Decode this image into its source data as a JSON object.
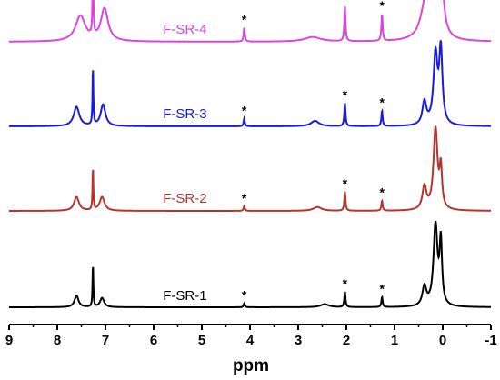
{
  "chart_data": {
    "type": "line",
    "title": "",
    "xlabel": "ppm",
    "ylabel": "",
    "xlim": [
      9,
      -1
    ],
    "x_reversed": true,
    "x_ticks": [
      9,
      8,
      7,
      6,
      5,
      4,
      3,
      2,
      1,
      0,
      -1
    ],
    "x_tick_labels": [
      "9",
      "8",
      "7",
      "6",
      "5",
      "4",
      "3",
      "2",
      "1",
      "0",
      "-1"
    ],
    "grid": false,
    "legend": "none",
    "annotation_symbol": "*",
    "annotation_ppm": [
      4.12,
      2.03,
      1.26
    ],
    "series": [
      {
        "name": "F-SR-4",
        "color": "#d946d9",
        "label_ppm": 5.35,
        "peaks": [
          {
            "ppm": 7.52,
            "h": 0.33,
            "w": 0.12
          },
          {
            "ppm": 7.26,
            "h": 1.0,
            "w": 0.01
          },
          {
            "ppm": 7.02,
            "h": 0.42,
            "w": 0.09
          },
          {
            "ppm": 4.12,
            "h": 0.18,
            "w": 0.015
          },
          {
            "ppm": 2.03,
            "h": 0.45,
            "w": 0.015
          },
          {
            "ppm": 1.26,
            "h": 0.35,
            "w": 0.015
          },
          {
            "ppm": 2.7,
            "h": 0.06,
            "w": 0.2
          },
          {
            "ppm": 0.35,
            "h": 0.5,
            "w": 0.12
          },
          {
            "ppm": 0.15,
            "h": 0.6,
            "w": 0.09
          },
          {
            "ppm": 0.02,
            "h": 0.55,
            "w": 0.06
          }
        ]
      },
      {
        "name": "F-SR-3",
        "color": "#1a1adb",
        "label_ppm": 5.35,
        "peaks": [
          {
            "ppm": 7.6,
            "h": 0.25,
            "w": 0.07
          },
          {
            "ppm": 7.26,
            "h": 0.75,
            "w": 0.01
          },
          {
            "ppm": 7.05,
            "h": 0.28,
            "w": 0.06
          },
          {
            "ppm": 4.12,
            "h": 0.1,
            "w": 0.015
          },
          {
            "ppm": 2.65,
            "h": 0.07,
            "w": 0.1
          },
          {
            "ppm": 2.03,
            "h": 0.3,
            "w": 0.015
          },
          {
            "ppm": 1.26,
            "h": 0.2,
            "w": 0.015
          },
          {
            "ppm": 0.38,
            "h": 0.3,
            "w": 0.05
          },
          {
            "ppm": 0.15,
            "h": 0.9,
            "w": 0.05
          },
          {
            "ppm": 0.04,
            "h": 0.95,
            "w": 0.04
          }
        ]
      },
      {
        "name": "F-SR-2",
        "color": "#b5342b",
        "label_ppm": 5.35,
        "peaks": [
          {
            "ppm": 7.6,
            "h": 0.18,
            "w": 0.06
          },
          {
            "ppm": 7.26,
            "h": 0.55,
            "w": 0.01
          },
          {
            "ppm": 7.07,
            "h": 0.18,
            "w": 0.06
          },
          {
            "ppm": 4.12,
            "h": 0.06,
            "w": 0.015
          },
          {
            "ppm": 2.6,
            "h": 0.05,
            "w": 0.1
          },
          {
            "ppm": 2.03,
            "h": 0.25,
            "w": 0.015
          },
          {
            "ppm": 1.26,
            "h": 0.13,
            "w": 0.015
          },
          {
            "ppm": 0.38,
            "h": 0.3,
            "w": 0.05
          },
          {
            "ppm": 0.15,
            "h": 1.05,
            "w": 0.05
          },
          {
            "ppm": 0.04,
            "h": 0.5,
            "w": 0.03
          }
        ]
      },
      {
        "name": "F-SR-1",
        "color": "#000000",
        "label_ppm": 5.35,
        "peaks": [
          {
            "ppm": 7.6,
            "h": 0.15,
            "w": 0.05
          },
          {
            "ppm": 7.26,
            "h": 0.55,
            "w": 0.01
          },
          {
            "ppm": 7.07,
            "h": 0.12,
            "w": 0.05
          },
          {
            "ppm": 4.12,
            "h": 0.05,
            "w": 0.015
          },
          {
            "ppm": 2.45,
            "h": 0.04,
            "w": 0.1
          },
          {
            "ppm": 2.03,
            "h": 0.2,
            "w": 0.015
          },
          {
            "ppm": 1.26,
            "h": 0.13,
            "w": 0.015
          },
          {
            "ppm": 0.38,
            "h": 0.25,
            "w": 0.05
          },
          {
            "ppm": 0.15,
            "h": 1.05,
            "w": 0.05
          },
          {
            "ppm": 0.04,
            "h": 0.8,
            "w": 0.03
          }
        ]
      }
    ]
  }
}
